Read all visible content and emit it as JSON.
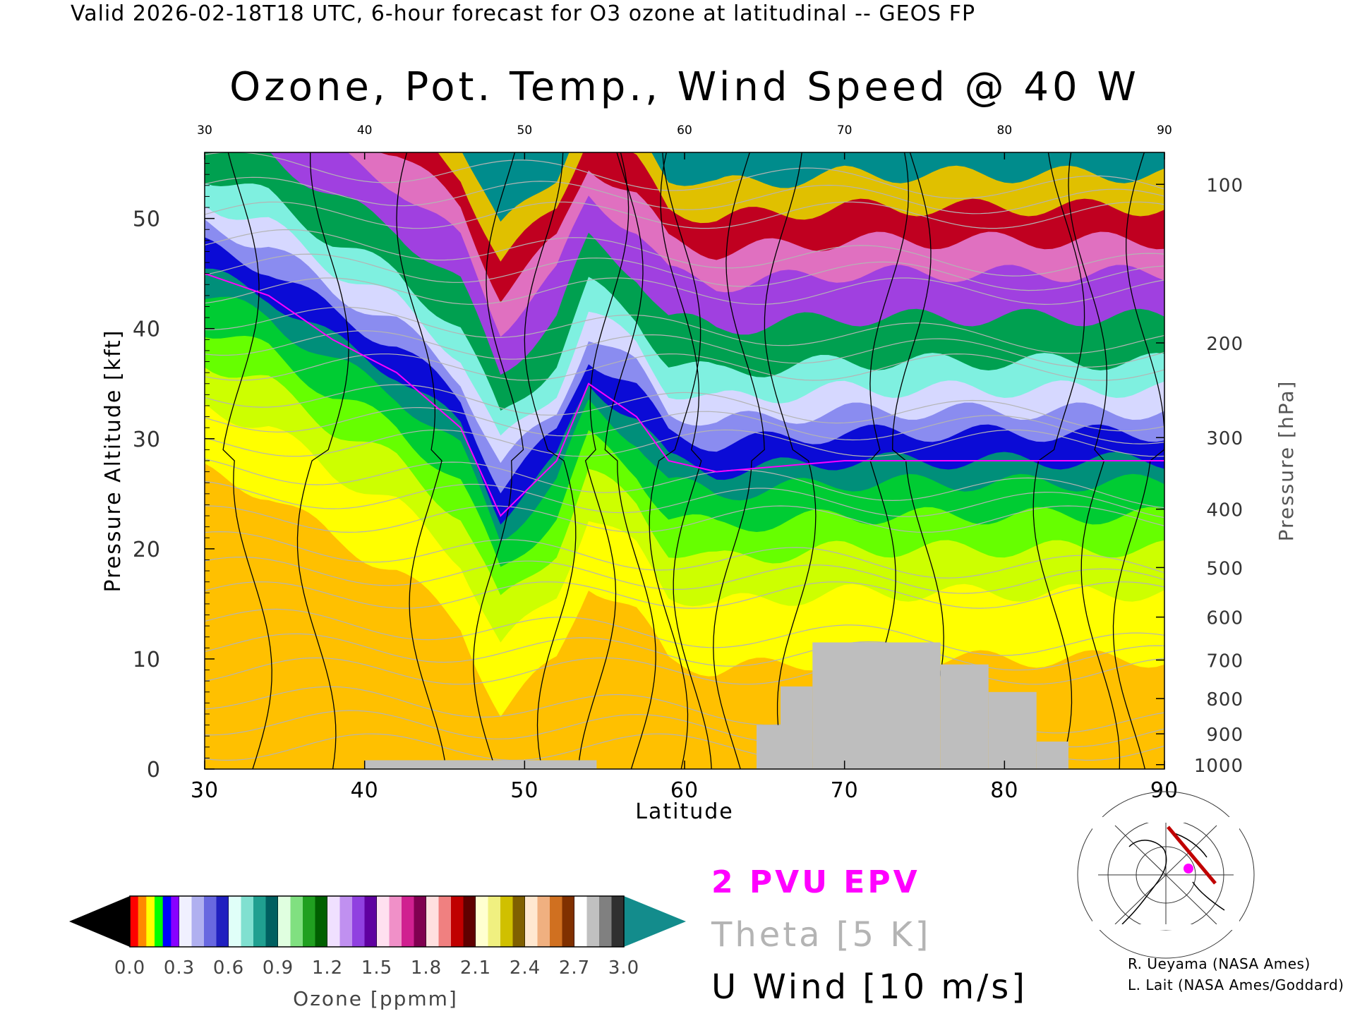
{
  "header": "Valid 2026-02-18T18 UTC, 6-hour forecast for O3 ozone at latitudinal -- GEOS FP",
  "chart_data": {
    "type": "heatmap",
    "title": "Ozone, Pot. Temp., Wind Speed @ 40 W",
    "xlabel": "Latitude",
    "ylabel": "Pressure Altitude [kft]",
    "y2label": "Pressure [hPa]",
    "xlim": [
      30,
      90
    ],
    "ylim": [
      0,
      56
    ],
    "x_ticks": [
      "30",
      "40",
      "50",
      "60",
      "70",
      "80",
      "90"
    ],
    "top_ticks": [
      "30",
      "40",
      "50",
      "60",
      "70",
      "80",
      "90"
    ],
    "y_ticks": [
      "0",
      "10",
      "20",
      "30",
      "40",
      "50"
    ],
    "pressure_ticks": [
      {
        "label": "100",
        "kft": 53.1
      },
      {
        "label": "200",
        "kft": 38.7
      },
      {
        "label": "300",
        "kft": 30.1
      },
      {
        "label": "400",
        "kft": 23.6
      },
      {
        "label": "500",
        "kft": 18.3
      },
      {
        "label": "600",
        "kft": 13.8
      },
      {
        "label": "700",
        "kft": 9.9
      },
      {
        "label": "800",
        "kft": 6.4
      },
      {
        "label": "900",
        "kft": 3.2
      },
      {
        "label": "1000",
        "kft": 0.4
      }
    ],
    "colorbar": {
      "label": "Ozone [ppmm]",
      "ticks": [
        "0.0",
        "0.3",
        "0.6",
        "0.9",
        "1.2",
        "1.5",
        "1.8",
        "2.1",
        "2.4",
        "2.7",
        "3.0"
      ],
      "range": [
        0.0,
        3.0
      ]
    },
    "tropopause_kft": [
      {
        "lat": 30,
        "kft": 45
      },
      {
        "lat": 34,
        "kft": 43
      },
      {
        "lat": 38,
        "kft": 39
      },
      {
        "lat": 42,
        "kft": 36
      },
      {
        "lat": 46,
        "kft": 31
      },
      {
        "lat": 48.5,
        "kft": 23
      },
      {
        "lat": 52,
        "kft": 28
      },
      {
        "lat": 54,
        "kft": 35
      },
      {
        "lat": 57,
        "kft": 32
      },
      {
        "lat": 59,
        "kft": 28
      },
      {
        "lat": 62,
        "kft": 27
      },
      {
        "lat": 70,
        "kft": 28
      },
      {
        "lat": 80,
        "kft": 28
      },
      {
        "lat": 90,
        "kft": 28
      }
    ],
    "terrain": [
      {
        "from": 40,
        "to": 54.5,
        "top_kft": 0.8
      },
      {
        "from": 64.5,
        "to": 66,
        "top_kft": 4
      },
      {
        "from": 66,
        "to": 68,
        "top_kft": 7.5
      },
      {
        "from": 68,
        "to": 76,
        "top_kft": 11.5
      },
      {
        "from": 76,
        "to": 79,
        "top_kft": 9.5
      },
      {
        "from": 79,
        "to": 82,
        "top_kft": 7
      },
      {
        "from": 82,
        "to": 84,
        "top_kft": 2.5
      }
    ]
  },
  "legend": {
    "epv": "2 PVU EPV",
    "theta": "Theta [5 K]",
    "wind": "U Wind [10 m/s]"
  },
  "colors": {
    "epv": "#ff00ff",
    "theta": "#b4b4b4",
    "wind": "#000000",
    "terrain": "#bebebe"
  },
  "credits": [
    "R. Ueyama (NASA Ames)",
    "L. Lait (NASA Ames/Goddard)"
  ]
}
